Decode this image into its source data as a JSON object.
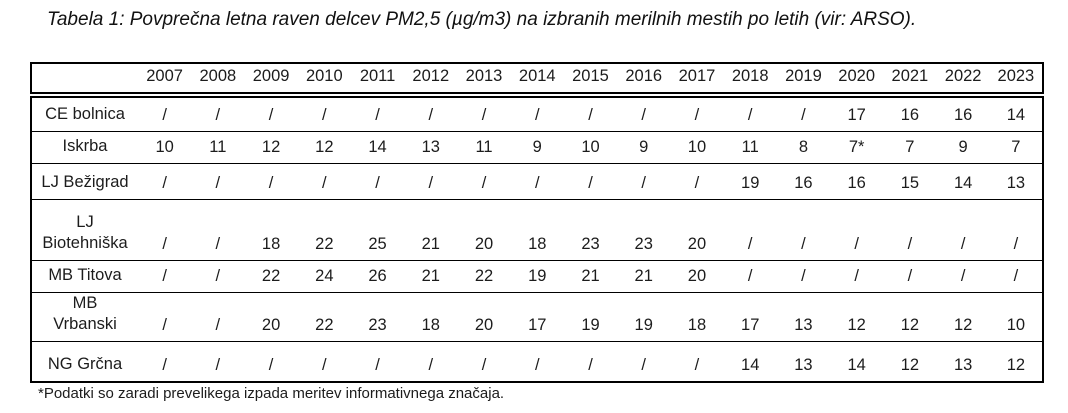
{
  "caption": "Tabela 1: Povprečna letna raven delcev PM2,5 (µg/m3) na izbranih merilnih mestih po letih (vir: ARSO).",
  "table": {
    "years": [
      "2007",
      "2008",
      "2009",
      "2010",
      "2011",
      "2012",
      "2013",
      "2014",
      "2015",
      "2016",
      "2017",
      "2018",
      "2019",
      "2020",
      "2021",
      "2022",
      "2023"
    ],
    "rows": [
      {
        "name": [
          "CE bolnica"
        ],
        "values": [
          "/",
          "/",
          "/",
          "/",
          "/",
          "/",
          "/",
          "/",
          "/",
          "/",
          "/",
          "/",
          "/",
          "17",
          "16",
          "16",
          "14"
        ]
      },
      {
        "name": [
          "Iskrba"
        ],
        "values": [
          "10",
          "11",
          "12",
          "12",
          "14",
          "13",
          "11",
          "9",
          "10",
          "9",
          "10",
          "11",
          "8",
          "7*",
          "7",
          "9",
          "7"
        ]
      },
      {
        "name": [
          "LJ Bežigrad"
        ],
        "values": [
          "/",
          "/",
          "/",
          "/",
          "/",
          "/",
          "/",
          "/",
          "/",
          "/",
          "/",
          "19",
          "16",
          "16",
          "15",
          "14",
          "13"
        ]
      },
      {
        "name": [
          "LJ",
          "Biotehniška"
        ],
        "values": [
          "/",
          "/",
          "18",
          "22",
          "25",
          "21",
          "20",
          "18",
          "23",
          "23",
          "20",
          "/",
          "/",
          "/",
          "/",
          "/",
          "/"
        ]
      },
      {
        "name": [
          "MB Titova"
        ],
        "values": [
          "/",
          "/",
          "22",
          "24",
          "26",
          "21",
          "22",
          "19",
          "21",
          "21",
          "20",
          "/",
          "/",
          "/",
          "/",
          "/",
          "/"
        ]
      },
      {
        "name": [
          "MB",
          "Vrbanski"
        ],
        "values": [
          "/",
          "/",
          "20",
          "22",
          "23",
          "18",
          "20",
          "17",
          "19",
          "19",
          "18",
          "17",
          "13",
          "12",
          "12",
          "12",
          "10"
        ]
      },
      {
        "name": [
          "NG Grčna"
        ],
        "values": [
          "/",
          "/",
          "/",
          "/",
          "/",
          "/",
          "/",
          "/",
          "/",
          "/",
          "/",
          "14",
          "13",
          "14",
          "12",
          "13",
          "12"
        ]
      }
    ]
  },
  "footnote": "*Podatki so zaradi prevelikega izpada meritev informativnega značaja."
}
